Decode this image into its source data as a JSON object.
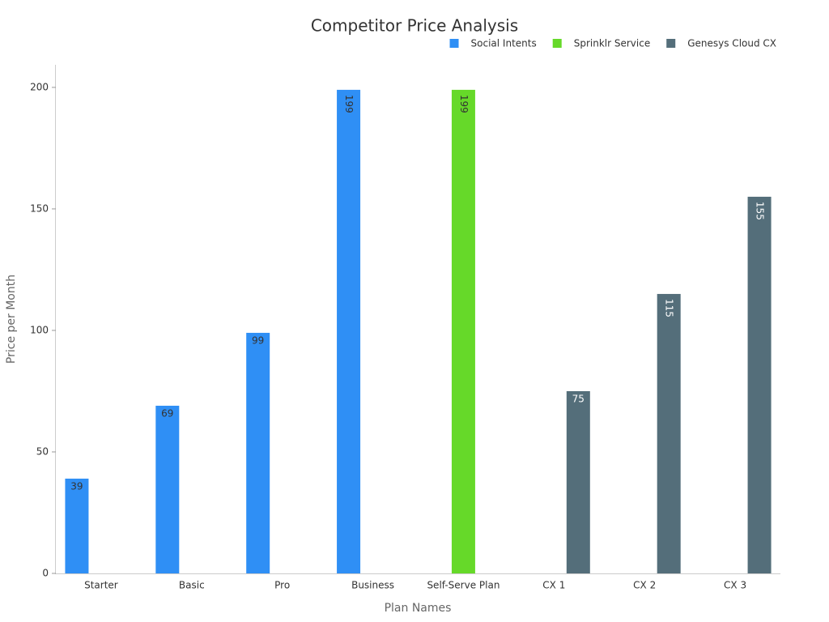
{
  "chart_data": {
    "type": "bar",
    "title": "Competitor Price Analysis",
    "x_label": "Plan Names",
    "y_label": "Price per Month",
    "categories": [
      "Starter",
      "Basic",
      "Pro",
      "Business",
      "Self-Serve Plan",
      "CX 1",
      "CX 2",
      "CX 3"
    ],
    "series": [
      {
        "name": "Social Intents",
        "color": "#2f8ff5",
        "label_color": "#333333",
        "values": [
          39,
          69,
          99,
          199,
          null,
          null,
          null,
          null
        ]
      },
      {
        "name": "Sprinklr Service",
        "color": "#66d929",
        "label_color": "#333333",
        "values": [
          null,
          null,
          null,
          null,
          199,
          null,
          null,
          null
        ]
      },
      {
        "name": "Genesys Cloud CX",
        "color": "#546e7a",
        "label_color": "#ffffff",
        "values": [
          null,
          null,
          null,
          null,
          null,
          75,
          115,
          155
        ]
      }
    ],
    "ylim": [
      0,
      209.3
    ],
    "yticks": [
      0,
      50,
      100,
      150,
      200
    ],
    "grid": false,
    "legend": "top-right"
  }
}
